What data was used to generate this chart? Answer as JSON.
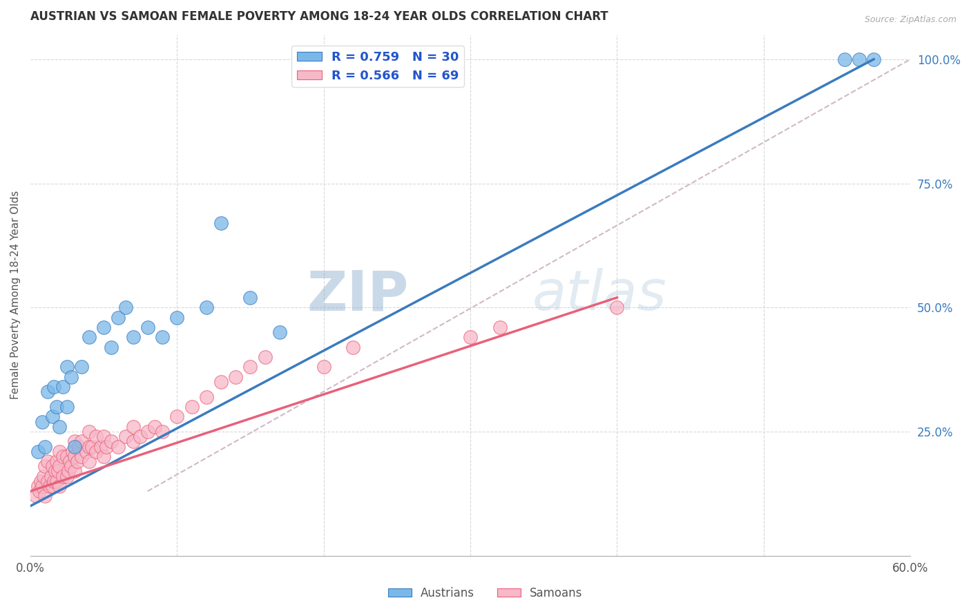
{
  "title": "AUSTRIAN VS SAMOAN FEMALE POVERTY AMONG 18-24 YEAR OLDS CORRELATION CHART",
  "source": "Source: ZipAtlas.com",
  "ylabel": "Female Poverty Among 18-24 Year Olds",
  "xlim": [
    0.0,
    0.6
  ],
  "ylim": [
    0.0,
    1.05
  ],
  "blue_R": 0.759,
  "blue_N": 30,
  "pink_R": 0.566,
  "pink_N": 69,
  "blue_color": "#7ab8e8",
  "pink_color": "#f7b8c8",
  "blue_line_color": "#3a7bbf",
  "pink_line_color": "#e8607a",
  "ref_line_color": "#d0b8c8",
  "legend_color": "#2255cc",
  "title_color": "#333333",
  "grid_color": "#d8d8d8",
  "watermark_zip": "ZIP",
  "watermark_atlas": "atlas",
  "blue_scatter_x": [
    0.005,
    0.008,
    0.01,
    0.012,
    0.015,
    0.016,
    0.018,
    0.02,
    0.022,
    0.025,
    0.025,
    0.028,
    0.03,
    0.035,
    0.04,
    0.05,
    0.055,
    0.06,
    0.065,
    0.07,
    0.08,
    0.09,
    0.1,
    0.12,
    0.13,
    0.15,
    0.17,
    0.555,
    0.565,
    0.575
  ],
  "blue_scatter_y": [
    0.21,
    0.27,
    0.22,
    0.33,
    0.28,
    0.34,
    0.3,
    0.26,
    0.34,
    0.3,
    0.38,
    0.36,
    0.22,
    0.38,
    0.44,
    0.46,
    0.42,
    0.48,
    0.5,
    0.44,
    0.46,
    0.44,
    0.48,
    0.5,
    0.67,
    0.52,
    0.45,
    1.0,
    1.0,
    1.0
  ],
  "pink_scatter_x": [
    0.004,
    0.005,
    0.006,
    0.007,
    0.008,
    0.009,
    0.01,
    0.01,
    0.012,
    0.012,
    0.013,
    0.014,
    0.015,
    0.015,
    0.016,
    0.017,
    0.018,
    0.018,
    0.019,
    0.02,
    0.02,
    0.02,
    0.022,
    0.022,
    0.025,
    0.025,
    0.026,
    0.027,
    0.028,
    0.029,
    0.03,
    0.03,
    0.03,
    0.032,
    0.033,
    0.035,
    0.035,
    0.038,
    0.04,
    0.04,
    0.04,
    0.042,
    0.045,
    0.045,
    0.048,
    0.05,
    0.05,
    0.052,
    0.055,
    0.06,
    0.065,
    0.07,
    0.07,
    0.075,
    0.08,
    0.085,
    0.09,
    0.1,
    0.11,
    0.12,
    0.13,
    0.14,
    0.15,
    0.16,
    0.2,
    0.22,
    0.3,
    0.32,
    0.4
  ],
  "pink_scatter_y": [
    0.12,
    0.14,
    0.13,
    0.15,
    0.14,
    0.16,
    0.12,
    0.18,
    0.15,
    0.19,
    0.14,
    0.16,
    0.14,
    0.18,
    0.15,
    0.17,
    0.15,
    0.19,
    0.17,
    0.14,
    0.18,
    0.21,
    0.16,
    0.2,
    0.16,
    0.2,
    0.17,
    0.19,
    0.18,
    0.21,
    0.17,
    0.2,
    0.23,
    0.19,
    0.22,
    0.2,
    0.23,
    0.21,
    0.19,
    0.22,
    0.25,
    0.22,
    0.21,
    0.24,
    0.22,
    0.2,
    0.24,
    0.22,
    0.23,
    0.22,
    0.24,
    0.23,
    0.26,
    0.24,
    0.25,
    0.26,
    0.25,
    0.28,
    0.3,
    0.32,
    0.35,
    0.36,
    0.38,
    0.4,
    0.38,
    0.42,
    0.44,
    0.46,
    0.5
  ],
  "blue_line_x": [
    0.0,
    0.575
  ],
  "blue_line_y": [
    0.1,
    1.0
  ],
  "pink_line_x": [
    0.0,
    0.4
  ],
  "pink_line_y": [
    0.13,
    0.52
  ],
  "ref_line_x": [
    0.08,
    0.6
  ],
  "ref_line_y": [
    0.13,
    1.0
  ],
  "figsize": [
    14.06,
    8.92
  ],
  "dpi": 100
}
